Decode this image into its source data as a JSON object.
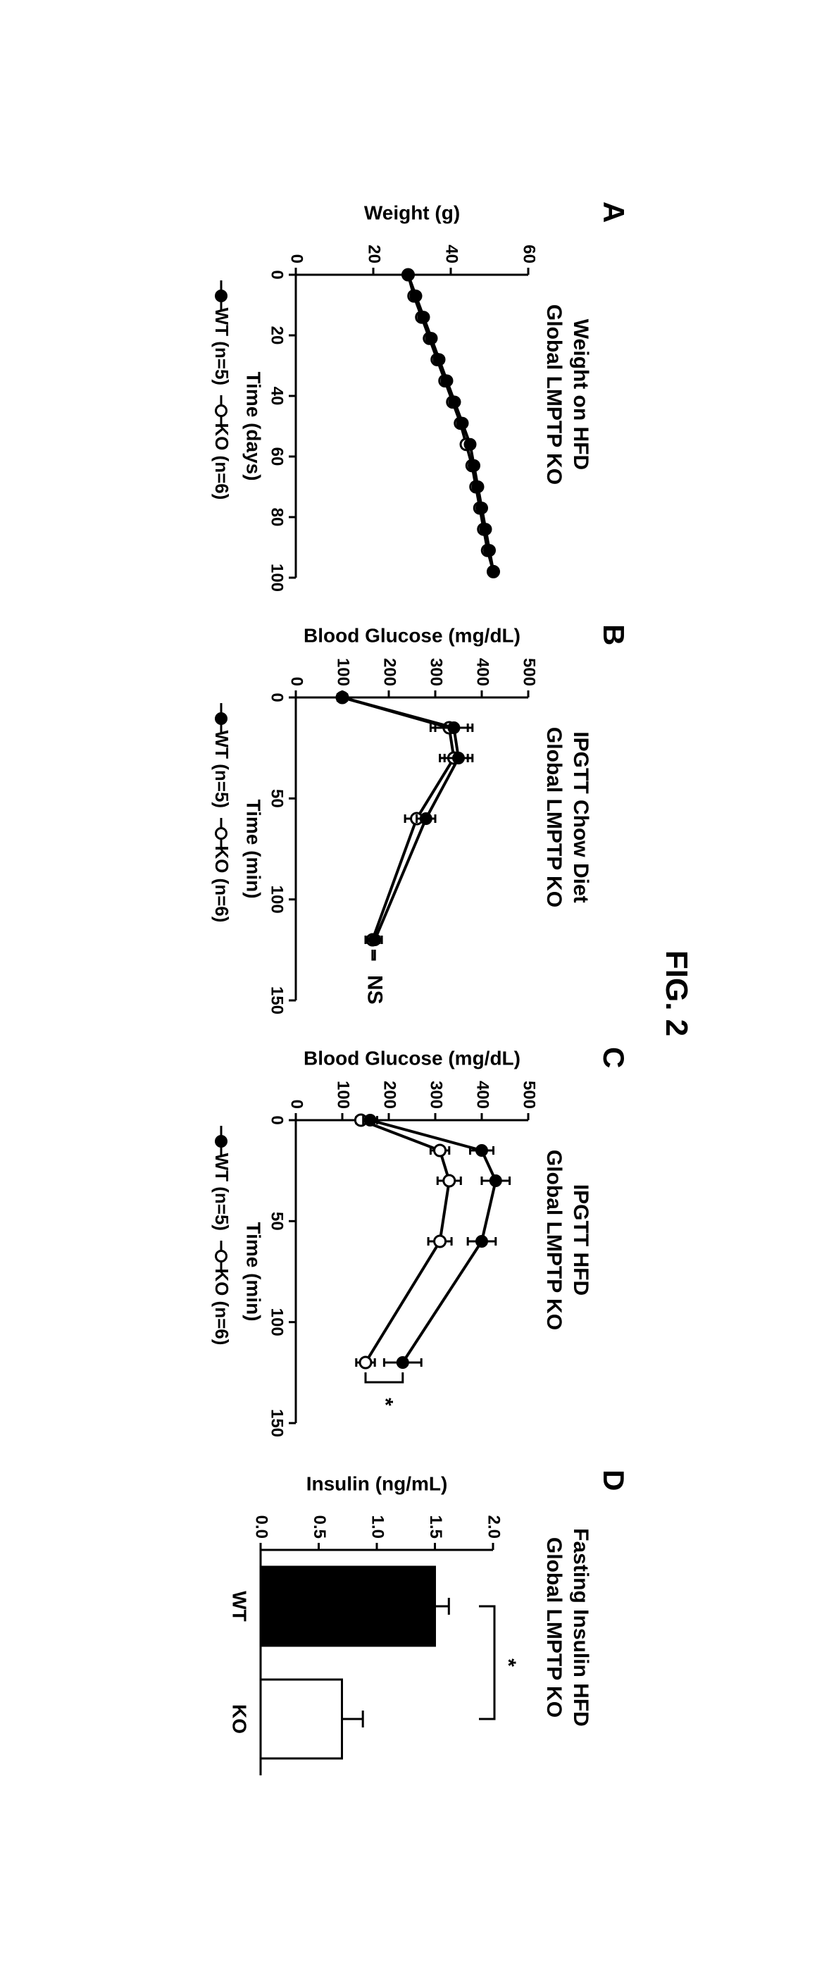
{
  "figure_label": "FIG. 2",
  "background_color": "#ffffff",
  "stroke_color": "#000000",
  "panels": {
    "A": {
      "letter": "A",
      "title_l1": "Weight on HFD",
      "title_l2": "Global LMPTP KO",
      "title_fontsize": 30,
      "type": "line",
      "xlabel": "Time (days)",
      "ylabel": "Weight (g)",
      "xlim": [
        0,
        100
      ],
      "xticks": [
        0,
        20,
        40,
        60,
        80,
        100
      ],
      "ylim": [
        0,
        60
      ],
      "yticks": [
        0,
        20,
        40,
        60
      ],
      "legend": {
        "WT": "WT (n=5)",
        "KO": "KO (n=6)"
      },
      "series": {
        "WT": {
          "marker": "filled",
          "color": "#000000",
          "x": [
            0,
            7,
            14,
            21,
            28,
            35,
            42,
            49,
            56,
            63,
            70,
            77,
            84,
            91,
            98
          ],
          "y": [
            29,
            31,
            33,
            35,
            37,
            39,
            41,
            43,
            45,
            46,
            47,
            48,
            49,
            50,
            51
          ],
          "yerr": [
            1,
            1,
            1,
            1,
            1,
            1,
            1,
            1,
            1,
            1,
            1,
            1,
            1,
            1,
            1
          ]
        },
        "KO": {
          "marker": "open",
          "color": "#000000",
          "x": [
            0,
            7,
            14,
            21,
            28,
            35,
            42,
            49,
            56,
            63,
            70,
            77,
            84,
            91,
            98
          ],
          "y": [
            29,
            30.5,
            32.5,
            34.5,
            36.5,
            38.5,
            40.5,
            42.5,
            44,
            45.5,
            46.5,
            47.5,
            48.5,
            49.5,
            51
          ],
          "yerr": [
            1,
            1,
            1,
            1,
            1,
            1,
            1,
            1,
            1,
            1,
            1,
            1,
            1,
            1,
            1
          ]
        }
      }
    },
    "B": {
      "letter": "B",
      "title_l1": "IPGTT Chow Diet",
      "title_l2": "Global LMPTP KO",
      "title_fontsize": 30,
      "type": "line",
      "xlabel": "Time (min)",
      "ylabel": "Blood Glucose (mg/dL)",
      "xlim": [
        0,
        150
      ],
      "xticks": [
        0,
        50,
        100,
        150
      ],
      "ylim": [
        0,
        500
      ],
      "yticks": [
        0,
        100,
        200,
        300,
        400,
        500
      ],
      "legend": {
        "WT": "WT (n=5)",
        "KO": "KO (n=6)"
      },
      "sig_label": "NS",
      "series": {
        "WT": {
          "marker": "filled",
          "color": "#000000",
          "x": [
            0,
            15,
            30,
            60,
            120
          ],
          "y": [
            100,
            340,
            350,
            280,
            170
          ],
          "yerr": [
            10,
            40,
            30,
            20,
            15
          ]
        },
        "KO": {
          "marker": "open",
          "color": "#000000",
          "x": [
            0,
            15,
            30,
            60,
            120
          ],
          "y": [
            100,
            330,
            340,
            260,
            165
          ],
          "yerr": [
            10,
            40,
            30,
            25,
            15
          ]
        }
      }
    },
    "C": {
      "letter": "C",
      "title_l1": "IPGTT HFD",
      "title_l2": "Global LMPTP KO",
      "title_fontsize": 30,
      "type": "line",
      "xlabel": "Time (min)",
      "ylabel": "Blood Glucose (mg/dL)",
      "xlim": [
        0,
        150
      ],
      "xticks": [
        0,
        50,
        100,
        150
      ],
      "ylim": [
        0,
        500
      ],
      "yticks": [
        0,
        100,
        200,
        300,
        400,
        500
      ],
      "legend": {
        "WT": "WT (n=5)",
        "KO": "KO (n=6)"
      },
      "sig_label": "*",
      "series": {
        "WT": {
          "marker": "filled",
          "color": "#000000",
          "x": [
            0,
            15,
            30,
            60,
            120
          ],
          "y": [
            160,
            400,
            430,
            400,
            230
          ],
          "yerr": [
            15,
            25,
            30,
            30,
            40
          ]
        },
        "KO": {
          "marker": "open",
          "color": "#000000",
          "x": [
            0,
            15,
            30,
            60,
            120
          ],
          "y": [
            140,
            310,
            330,
            310,
            150
          ],
          "yerr": [
            10,
            20,
            25,
            25,
            20
          ]
        }
      }
    },
    "D": {
      "letter": "D",
      "title_l1": "Fasting Insulin HFD",
      "title_l2": "Global LMPTP KO",
      "title_fontsize": 30,
      "type": "bar",
      "xlabel": "",
      "ylabel": "Insulin (ng/mL)",
      "ylim": [
        0.0,
        2.0
      ],
      "yticks": [
        0.0,
        0.5,
        1.0,
        1.5,
        2.0
      ],
      "categories": [
        "WT",
        "KO"
      ],
      "bars": {
        "WT": {
          "value": 1.5,
          "err": 0.12,
          "fill": "#000000"
        },
        "KO": {
          "value": 0.7,
          "err": 0.18,
          "fill": "#ffffff"
        }
      },
      "bar_width": 0.7,
      "sig_label": "*"
    }
  }
}
